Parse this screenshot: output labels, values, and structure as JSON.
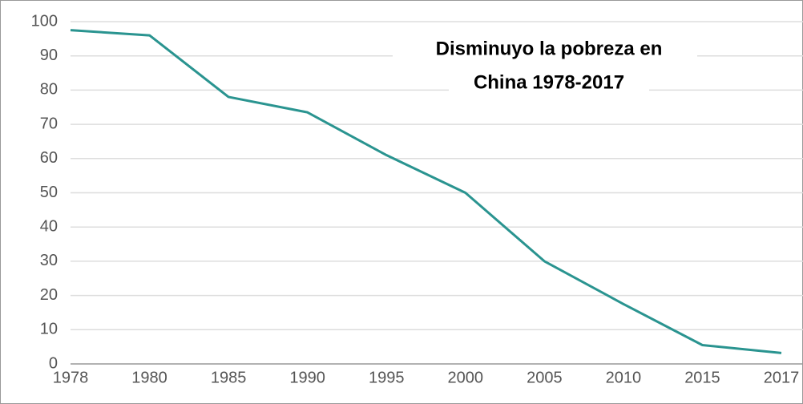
{
  "chart_data": {
    "type": "line",
    "title": [
      "Disminuyo la pobreza en",
      "China 1978-2017"
    ],
    "categories": [
      "1978",
      "1980",
      "1985",
      "1990",
      "1995",
      "2000",
      "2005",
      "2010",
      "2015",
      "2017"
    ],
    "series": [
      {
        "color": "#2a9490",
        "values": [
          97.5,
          96,
          78,
          73.5,
          61,
          50,
          30,
          17.5,
          5.5,
          3.2
        ]
      }
    ],
    "ylim": [
      0,
      100
    ],
    "yticks": [
      0,
      10,
      20,
      30,
      40,
      50,
      60,
      70,
      80,
      90,
      100
    ],
    "grid": true
  }
}
